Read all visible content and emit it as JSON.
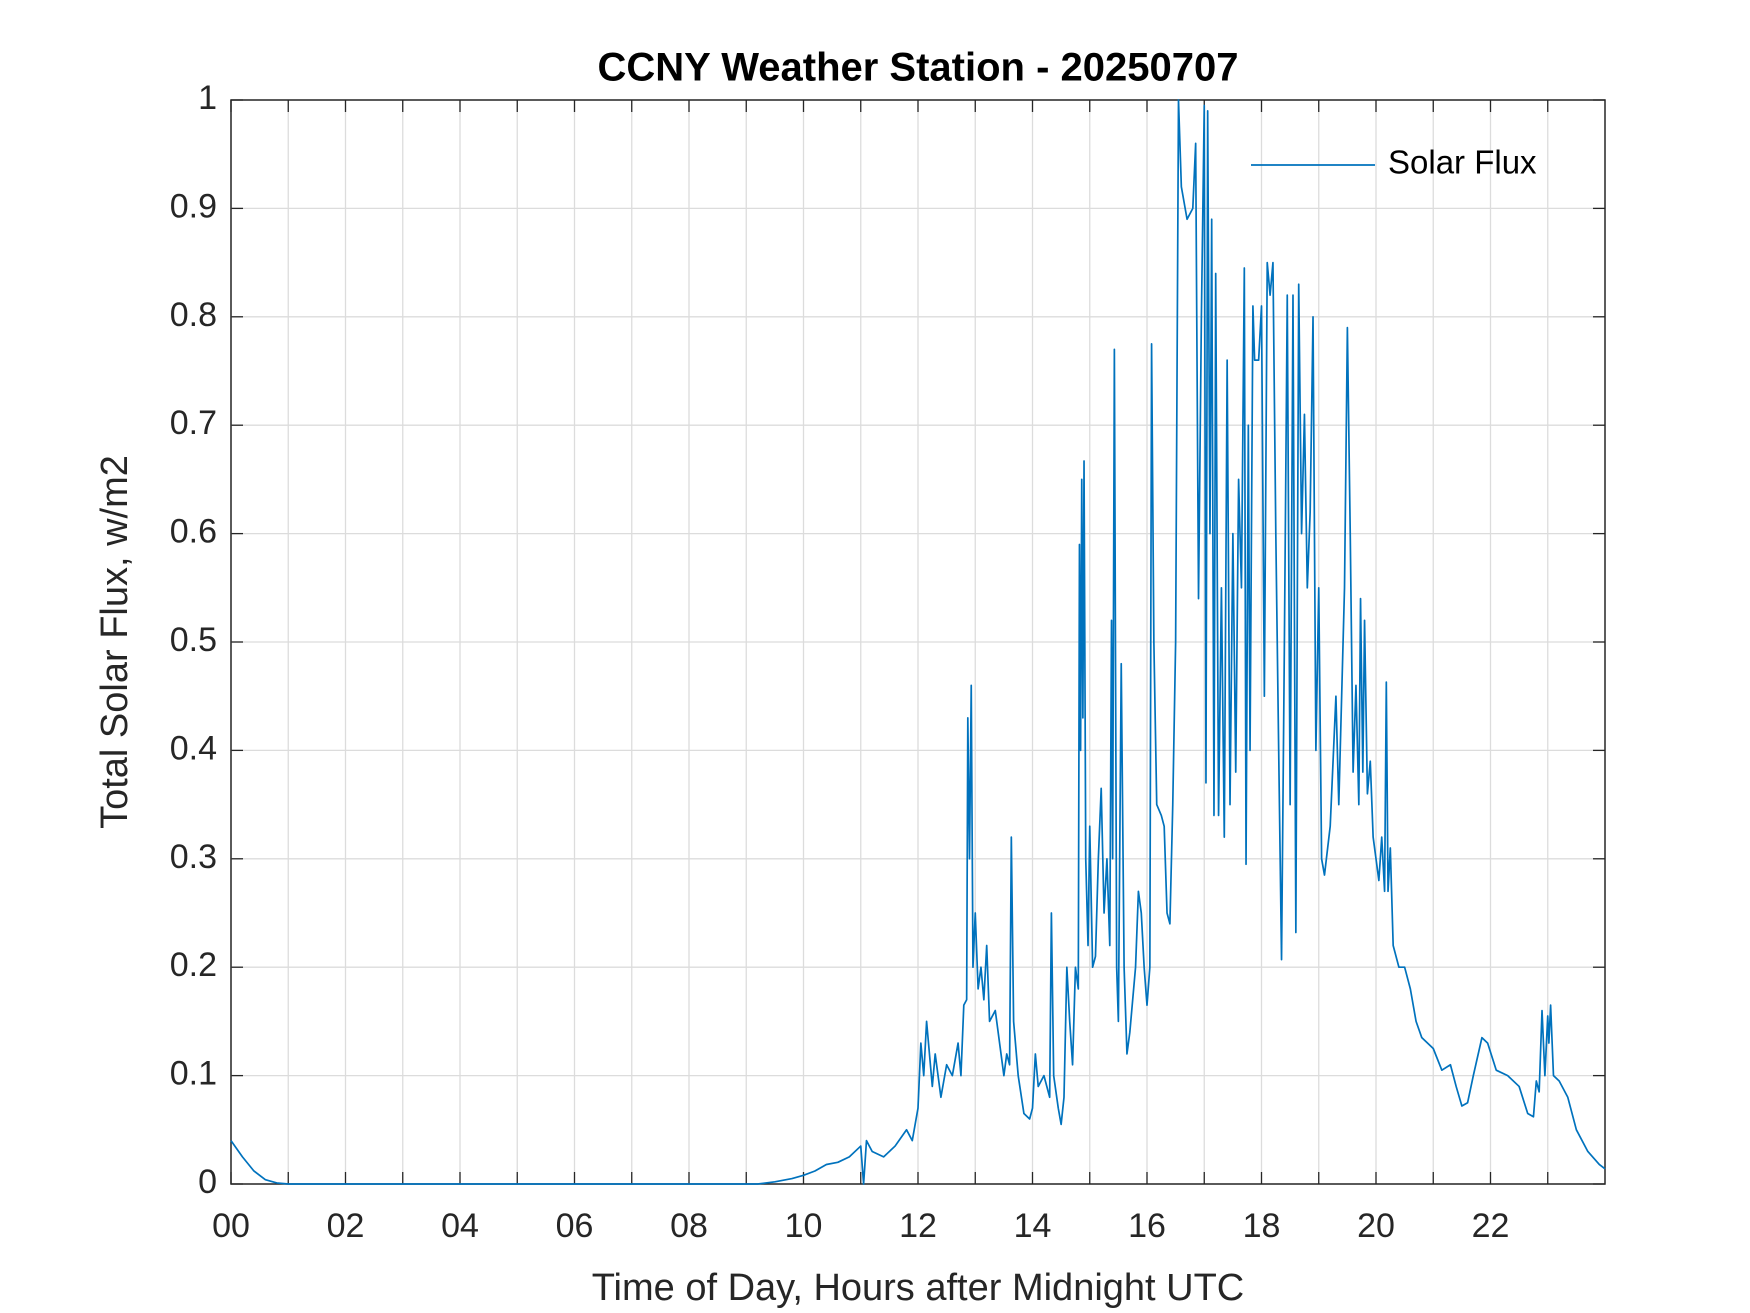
{
  "chart_data": {
    "type": "line",
    "title": "CCNY Weather Station - 20250707",
    "xlabel": "Time of Day, Hours after Midnight UTC",
    "ylabel": "Total Solar Flux, w/m2",
    "xlim": [
      0,
      24
    ],
    "ylim": [
      0,
      1
    ],
    "xticks": [
      {
        "value": 0,
        "label": "00"
      },
      {
        "value": 2,
        "label": "02"
      },
      {
        "value": 4,
        "label": "04"
      },
      {
        "value": 6,
        "label": "06"
      },
      {
        "value": 8,
        "label": "08"
      },
      {
        "value": 10,
        "label": "10"
      },
      {
        "value": 12,
        "label": "12"
      },
      {
        "value": 14,
        "label": "14"
      },
      {
        "value": 16,
        "label": "16"
      },
      {
        "value": 18,
        "label": "18"
      },
      {
        "value": 20,
        "label": "20"
      },
      {
        "value": 22,
        "label": "22"
      }
    ],
    "xminorticks": [
      1,
      3,
      5,
      7,
      9,
      11,
      13,
      15,
      17,
      19,
      21,
      23
    ],
    "yticks": [
      0,
      0.1,
      0.2,
      0.3,
      0.4,
      0.5,
      0.6,
      0.7,
      0.8,
      0.9,
      1
    ],
    "grid": true,
    "legend": "upper-right",
    "x": [
      0,
      0.2,
      0.4,
      0.6,
      0.8,
      1,
      9.2,
      9.5,
      9.8,
      10,
      10.2,
      10.4,
      10.6,
      10.8,
      11,
      11.05,
      11.1,
      11.2,
      11.4,
      11.6,
      11.8,
      11.9,
      12,
      12.05,
      12.1,
      12.15,
      12.25,
      12.3,
      12.4,
      12.5,
      12.6,
      12.7,
      12.75,
      12.8,
      12.85,
      12.87,
      12.9,
      12.93,
      12.96,
      13,
      13.05,
      13.1,
      13.15,
      13.2,
      13.25,
      13.35,
      13.45,
      13.5,
      13.55,
      13.6,
      13.63,
      13.67,
      13.75,
      13.85,
      13.95,
      14,
      14.05,
      14.1,
      14.2,
      14.3,
      14.33,
      14.37,
      14.45,
      14.5,
      14.55,
      14.6,
      14.65,
      14.7,
      14.75,
      14.8,
      14.82,
      14.84,
      14.86,
      14.88,
      14.9,
      14.93,
      14.97,
      15,
      15.05,
      15.1,
      15.15,
      15.2,
      15.25,
      15.3,
      15.35,
      15.38,
      15.4,
      15.43,
      15.47,
      15.5,
      15.55,
      15.6,
      15.65,
      15.7,
      15.8,
      15.85,
      15.9,
      15.95,
      16,
      16.05,
      16.08,
      16.12,
      16.17,
      16.25,
      16.3,
      16.35,
      16.4,
      16.45,
      16.5,
      16.55,
      16.6,
      16.7,
      16.8,
      16.85,
      16.9,
      16.95,
      17,
      17.03,
      17.06,
      17.1,
      17.13,
      17.17,
      17.2,
      17.25,
      17.3,
      17.35,
      17.4,
      17.45,
      17.5,
      17.55,
      17.6,
      17.65,
      17.7,
      17.73,
      17.77,
      17.8,
      17.85,
      17.88,
      17.95,
      18,
      18.05,
      18.1,
      18.15,
      18.2,
      18.25,
      18.3,
      18.35,
      18.4,
      18.45,
      18.5,
      18.55,
      18.6,
      18.65,
      18.7,
      18.75,
      18.8,
      18.85,
      18.9,
      18.95,
      19,
      19.05,
      19.1,
      19.2,
      19.3,
      19.35,
      19.45,
      19.5,
      19.55,
      19.6,
      19.65,
      19.7,
      19.73,
      19.77,
      19.8,
      19.85,
      19.9,
      19.95,
      20,
      20.05,
      20.1,
      20.15,
      20.18,
      20.21,
      20.25,
      20.3,
      20.4,
      20.5,
      20.6,
      20.7,
      20.8,
      21,
      21.15,
      21.3,
      21.4,
      21.5,
      21.6,
      21.7,
      21.85,
      21.95,
      22.1,
      22.3,
      22.5,
      22.65,
      22.75,
      22.8,
      22.85,
      22.9,
      22.95,
      23,
      23.02,
      23.05,
      23.1,
      23.2,
      23.35,
      23.5,
      23.7,
      23.9,
      24
    ],
    "series": [
      {
        "name": "Solar Flux",
        "color": "#0072bd",
        "values": [
          0.04,
          0.025,
          0.012,
          0.004,
          0.001,
          0,
          0,
          0.002,
          0.005,
          0.008,
          0.012,
          0.018,
          0.02,
          0.025,
          0.035,
          0,
          0.04,
          0.03,
          0.025,
          0.035,
          0.05,
          0.04,
          0.07,
          0.13,
          0.1,
          0.15,
          0.09,
          0.12,
          0.08,
          0.11,
          0.1,
          0.13,
          0.1,
          0.165,
          0.17,
          0.43,
          0.3,
          0.46,
          0.2,
          0.25,
          0.18,
          0.2,
          0.17,
          0.22,
          0.15,
          0.16,
          0.12,
          0.1,
          0.12,
          0.11,
          0.32,
          0.15,
          0.1,
          0.065,
          0.06,
          0.07,
          0.12,
          0.09,
          0.1,
          0.08,
          0.25,
          0.1,
          0.07,
          0.055,
          0.08,
          0.2,
          0.15,
          0.11,
          0.2,
          0.18,
          0.59,
          0.4,
          0.65,
          0.43,
          0.667,
          0.3,
          0.22,
          0.33,
          0.2,
          0.21,
          0.3,
          0.365,
          0.25,
          0.3,
          0.22,
          0.52,
          0.3,
          0.77,
          0.2,
          0.15,
          0.48,
          0.2,
          0.12,
          0.14,
          0.2,
          0.27,
          0.25,
          0.2,
          0.165,
          0.2,
          0.775,
          0.5,
          0.35,
          0.34,
          0.33,
          0.25,
          0.24,
          0.35,
          0.5,
          1,
          0.92,
          0.89,
          0.9,
          0.96,
          0.54,
          0.8,
          0.995,
          0.37,
          0.99,
          0.6,
          0.89,
          0.34,
          0.84,
          0.34,
          0.55,
          0.32,
          0.76,
          0.35,
          0.6,
          0.38,
          0.65,
          0.55,
          0.845,
          0.295,
          0.7,
          0.4,
          0.81,
          0.76,
          0.76,
          0.81,
          0.45,
          0.85,
          0.82,
          0.85,
          0.6,
          0.4,
          0.207,
          0.5,
          0.82,
          0.35,
          0.82,
          0.232,
          0.83,
          0.6,
          0.71,
          0.55,
          0.62,
          0.8,
          0.4,
          0.55,
          0.3,
          0.285,
          0.33,
          0.45,
          0.35,
          0.55,
          0.79,
          0.6,
          0.38,
          0.46,
          0.35,
          0.54,
          0.38,
          0.52,
          0.36,
          0.39,
          0.32,
          0.3,
          0.28,
          0.32,
          0.27,
          0.463,
          0.27,
          0.31,
          0.22,
          0.2,
          0.2,
          0.18,
          0.15,
          0.135,
          0.125,
          0.105,
          0.11,
          0.09,
          0.072,
          0.075,
          0.1,
          0.135,
          0.13,
          0.105,
          0.1,
          0.09,
          0.065,
          0.062,
          0.095,
          0.085,
          0.16,
          0.1,
          0.155,
          0.13,
          0.165,
          0.1,
          0.095,
          0.08,
          0.05,
          0.03,
          0.018,
          0.014
        ]
      }
    ]
  }
}
